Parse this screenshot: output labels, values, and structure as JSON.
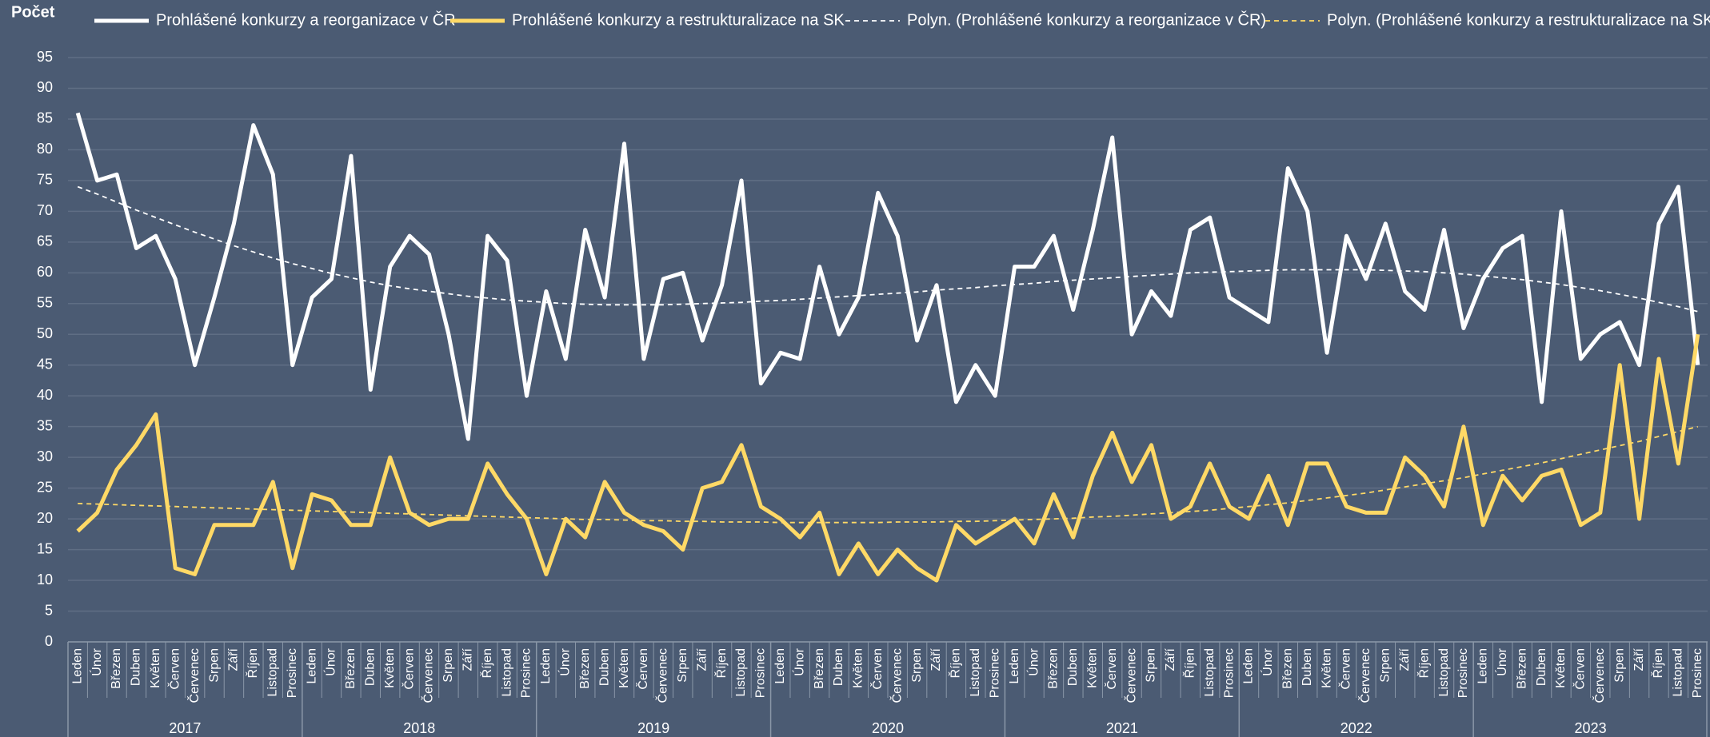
{
  "chart_data": {
    "type": "line",
    "ylabel": "Počet",
    "categories": [
      "Leden",
      "Únor",
      "Březen",
      "Duben",
      "Květen",
      "Červen",
      "Červenec",
      "Srpen",
      "Září",
      "Říjen",
      "Listopad",
      "Prosinec",
      "Leden",
      "Únor",
      "Březen",
      "Duben",
      "Květen",
      "Červen",
      "Červenec",
      "Srpen",
      "Září",
      "Říjen",
      "Listopad",
      "Prosinec",
      "Leden",
      "Únor",
      "Březen",
      "Duben",
      "Květen",
      "Červen",
      "Červenec",
      "Srpen",
      "Září",
      "Říjen",
      "Listopad",
      "Prosinec",
      "Leden",
      "Únor",
      "Březen",
      "Duben",
      "Květen",
      "Červen",
      "Červenec",
      "Srpen",
      "Září",
      "Říjen",
      "Listopad",
      "Prosinec",
      "Leden",
      "Únor",
      "Březen",
      "Duben",
      "Květen",
      "Červen",
      "Červenec",
      "Srpen",
      "Září",
      "Říjen",
      "Listopad",
      "Prosinec",
      "Leden",
      "Únor",
      "Březen",
      "Duben",
      "Květen",
      "Červen",
      "Červenec",
      "Srpen",
      "Září",
      "Říjen",
      "Listopad",
      "Prosinec",
      "Leden",
      "Únor",
      "Březen",
      "Duben",
      "Květen",
      "Červen",
      "Červenec",
      "Srpen",
      "Září",
      "Říjen",
      "Listopad",
      "Prosinec"
    ],
    "years": [
      "2017",
      "2018",
      "2019",
      "2020",
      "2021",
      "2022",
      "2023"
    ],
    "series": [
      {
        "name": "Prohlášené konkurzy a reorganizace v ČR",
        "color": "#ffffff",
        "line_style": "solid",
        "values": [
          86,
          75,
          76,
          64,
          66,
          59,
          45,
          56,
          68,
          84,
          76,
          45,
          56,
          59,
          79,
          41,
          61,
          66,
          63,
          50,
          33,
          66,
          62,
          40,
          57,
          46,
          67,
          56,
          81,
          46,
          59,
          60,
          49,
          58,
          75,
          42,
          47,
          46,
          61,
          50,
          56,
          73,
          66,
          49,
          58,
          39,
          45,
          40,
          61,
          61,
          66,
          54,
          67,
          82,
          50,
          57,
          53,
          67,
          69,
          56,
          54,
          52,
          77,
          70,
          47,
          66,
          59,
          68,
          57,
          54,
          67,
          51,
          59,
          64,
          66,
          39,
          70,
          46,
          50,
          52,
          45,
          68,
          74,
          45
        ]
      },
      {
        "name": "Prohlášené konkurzy a restrukturalizace na SK",
        "color": "#ffd966",
        "line_style": "solid",
        "values": [
          18,
          21,
          28,
          32,
          37,
          12,
          11,
          19,
          19,
          19,
          26,
          12,
          24,
          23,
          19,
          19,
          30,
          21,
          19,
          20,
          20,
          29,
          24,
          20,
          11,
          20,
          17,
          26,
          21,
          19,
          18,
          15,
          25,
          26,
          32,
          22,
          20,
          17,
          21,
          11,
          16,
          11,
          15,
          12,
          10,
          19,
          16,
          18,
          20,
          16,
          24,
          17,
          27,
          34,
          26,
          32,
          20,
          22,
          29,
          22,
          20,
          27,
          19,
          29,
          29,
          22,
          21,
          21,
          30,
          27,
          22,
          35,
          19,
          27,
          23,
          27,
          28,
          19,
          21,
          45,
          20,
          46,
          29,
          50
        ]
      },
      {
        "name": "Polyn. (Prohlášené konkurzy a reorganizace v ČR)",
        "color": "#ffffff",
        "line_style": "dashed",
        "values": [
          74,
          72.8,
          71.5,
          70.2,
          69,
          67.8,
          66.6,
          65.5,
          64.4,
          63.4,
          62.4,
          61.5,
          60.7,
          59.9,
          59.2,
          58.5,
          57.9,
          57.4,
          57,
          56.6,
          56.2,
          55.9,
          55.6,
          55.4,
          55.2,
          55,
          54.9,
          54.8,
          54.8,
          54.8,
          54.8,
          54.9,
          55,
          55.1,
          55.2,
          55.4,
          55.5,
          55.7,
          55.9,
          56.1,
          56.3,
          56.5,
          56.7,
          56.9,
          57.2,
          57.4,
          57.6,
          57.9,
          58.1,
          58.3,
          58.6,
          58.8,
          59,
          59.2,
          59.4,
          59.6,
          59.8,
          60,
          60.1,
          60.2,
          60.3,
          60.4,
          60.5,
          60.5,
          60.5,
          60.5,
          60.5,
          60.4,
          60.3,
          60.2,
          60,
          59.8,
          59.5,
          59.2,
          58.9,
          58.5,
          58.1,
          57.6,
          57.1,
          56.5,
          55.9,
          55.2,
          54.5,
          53.7
        ]
      },
      {
        "name": "Polyn. (Prohlášené konkurzy a restrukturalizace na SK)",
        "color": "#ffd966",
        "line_style": "dashed",
        "values": [
          22.5,
          22.4,
          22.3,
          22.2,
          22.1,
          22,
          21.9,
          21.8,
          21.7,
          21.6,
          21.5,
          21.4,
          21.3,
          21.2,
          21.1,
          21,
          20.9,
          20.8,
          20.7,
          20.6,
          20.5,
          20.4,
          20.3,
          20.2,
          20.1,
          20,
          19.9,
          19.9,
          19.8,
          19.7,
          19.7,
          19.6,
          19.6,
          19.5,
          19.5,
          19.5,
          19.4,
          19.4,
          19.4,
          19.4,
          19.4,
          19.4,
          19.5,
          19.5,
          19.5,
          19.6,
          19.6,
          19.7,
          19.8,
          19.9,
          20,
          20.1,
          20.3,
          20.4,
          20.6,
          20.8,
          21,
          21.2,
          21.4,
          21.7,
          22,
          22.3,
          22.6,
          23,
          23.4,
          23.8,
          24.2,
          24.7,
          25.2,
          25.7,
          26.2,
          26.7,
          27.3,
          27.9,
          28.5,
          29.1,
          29.8,
          30.5,
          31.2,
          31.9,
          32.6,
          33.4,
          34.2,
          35
        ]
      }
    ],
    "ylim": [
      0,
      95
    ],
    "yticks": [
      0,
      5,
      10,
      15,
      20,
      25,
      30,
      35,
      40,
      45,
      50,
      55,
      60,
      65,
      70,
      75,
      80,
      85,
      90,
      95
    ],
    "grid": true,
    "legend": "top"
  }
}
